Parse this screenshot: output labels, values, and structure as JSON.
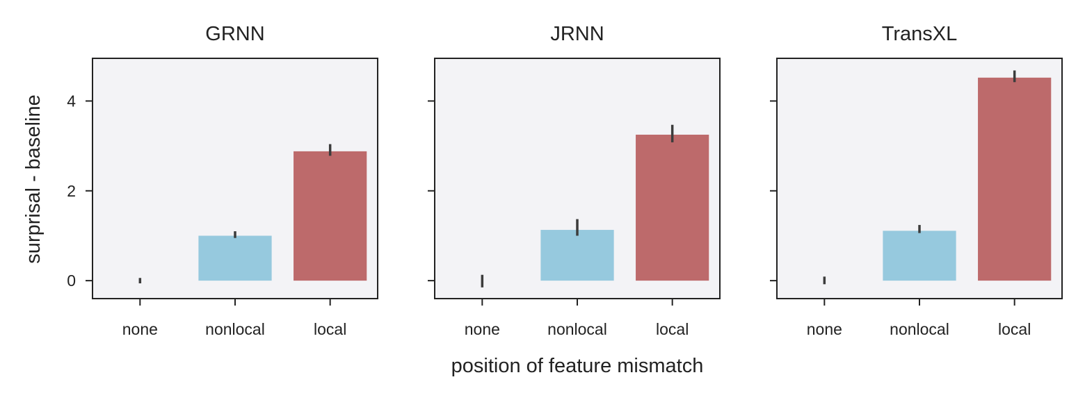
{
  "chart_data": {
    "type": "bar",
    "ylabel": "surprisal - baseline",
    "xlabel": "position of feature mismatch",
    "ylim": [
      -0.4,
      4.95
    ],
    "yticks": [
      0,
      2,
      4
    ],
    "sharey": true,
    "grid": false,
    "colors": [
      "#8fc9e4",
      "#c26467",
      "#8fc9e4",
      "#c26467"
    ],
    "bar_colors": [
      "#96c9de",
      "#96c9de",
      "#bd6a6b"
    ],
    "panels": [
      {
        "title": "GRNN",
        "categories": [
          "none",
          "nonlocal",
          "local"
        ],
        "values": [
          0.0,
          1.0,
          2.88
        ],
        "ci_low": [
          -0.06,
          0.95,
          2.78
        ],
        "ci_high": [
          0.06,
          1.1,
          3.04
        ]
      },
      {
        "title": "JRNN",
        "categories": [
          "none",
          "nonlocal",
          "local"
        ],
        "values": [
          0.0,
          1.13,
          3.25
        ],
        "ci_low": [
          -0.15,
          1.0,
          3.08
        ],
        "ci_high": [
          0.13,
          1.37,
          3.47
        ]
      },
      {
        "title": "TransXL",
        "categories": [
          "none",
          "nonlocal",
          "local"
        ],
        "values": [
          0.0,
          1.11,
          4.52
        ],
        "ci_low": [
          -0.08,
          1.06,
          4.42
        ],
        "ci_high": [
          0.09,
          1.24,
          4.68
        ]
      }
    ]
  }
}
